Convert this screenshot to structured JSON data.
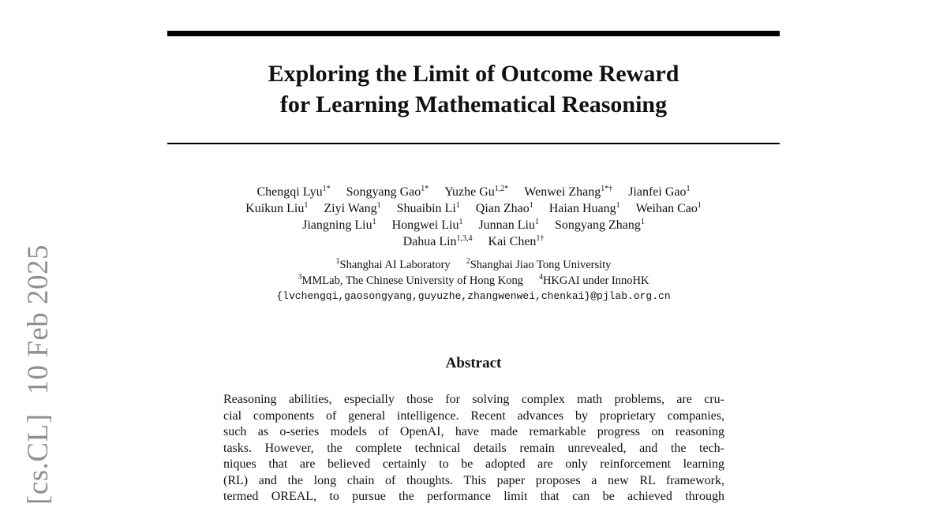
{
  "title": {
    "lines": [
      "Exploring the Limit of Outcome Reward",
      "for Learning Mathematical Reasoning"
    ]
  },
  "authors": [
    [
      {
        "name": "Chengqi Lyu",
        "sup": "1*"
      },
      {
        "name": "Songyang Gao",
        "sup": "1*"
      },
      {
        "name": "Yuzhe Gu",
        "sup": "1,2*"
      },
      {
        "name": "Wenwei Zhang",
        "sup": "1*†"
      },
      {
        "name": "Jianfei Gao",
        "sup": "1"
      }
    ],
    [
      {
        "name": "Kuikun Liu",
        "sup": "1"
      },
      {
        "name": "Ziyi Wang",
        "sup": "1"
      },
      {
        "name": "Shuaibin Li",
        "sup": "1"
      },
      {
        "name": "Qian Zhao",
        "sup": "1"
      },
      {
        "name": "Haian Huang",
        "sup": "1"
      },
      {
        "name": "Weihan Cao",
        "sup": "1"
      }
    ],
    [
      {
        "name": "Jiangning Liu",
        "sup": "1"
      },
      {
        "name": "Hongwei Liu",
        "sup": "1"
      },
      {
        "name": "Junnan Liu",
        "sup": "1"
      },
      {
        "name": "Songyang Zhang",
        "sup": "1"
      }
    ],
    [
      {
        "name": "Dahua Lin",
        "sup": "1,3,4"
      },
      {
        "name": "Kai Chen",
        "sup": "1†"
      }
    ]
  ],
  "affiliations": [
    [
      {
        "sup": "1",
        "name": "Shanghai AI Laboratory"
      },
      {
        "sup": "2",
        "name": "Shanghai Jiao Tong University"
      }
    ],
    [
      {
        "sup": "3",
        "name": "MMLab, The Chinese University of Hong Kong"
      },
      {
        "sup": "4",
        "name": "HKGAI under InnoHK"
      }
    ]
  ],
  "email": "{lvchengqi,gaosongyang,guyuzhe,zhangwenwei,chenkai}@pjlab.org.cn",
  "abstract": {
    "heading": "Abstract",
    "lines": [
      "Reasoning abilities, especially those for solving complex math problems, are cru-",
      "cial components of general intelligence. Recent advances by proprietary companies,",
      "such as o-series models of OpenAI, have made remarkable progress on reasoning",
      "tasks. However, the complete technical details remain unrevealed, and the tech-",
      "niques that are believed certainly to be adopted are only reinforcement learning",
      "(RL) and the long chain of thoughts. This paper proposes a new RL framework,",
      "termed OREAL, to pursue the performance limit that can be achieved through"
    ]
  },
  "arxiv_stamp": {
    "category": "[cs.CL]",
    "date": "10 Feb 2025"
  }
}
